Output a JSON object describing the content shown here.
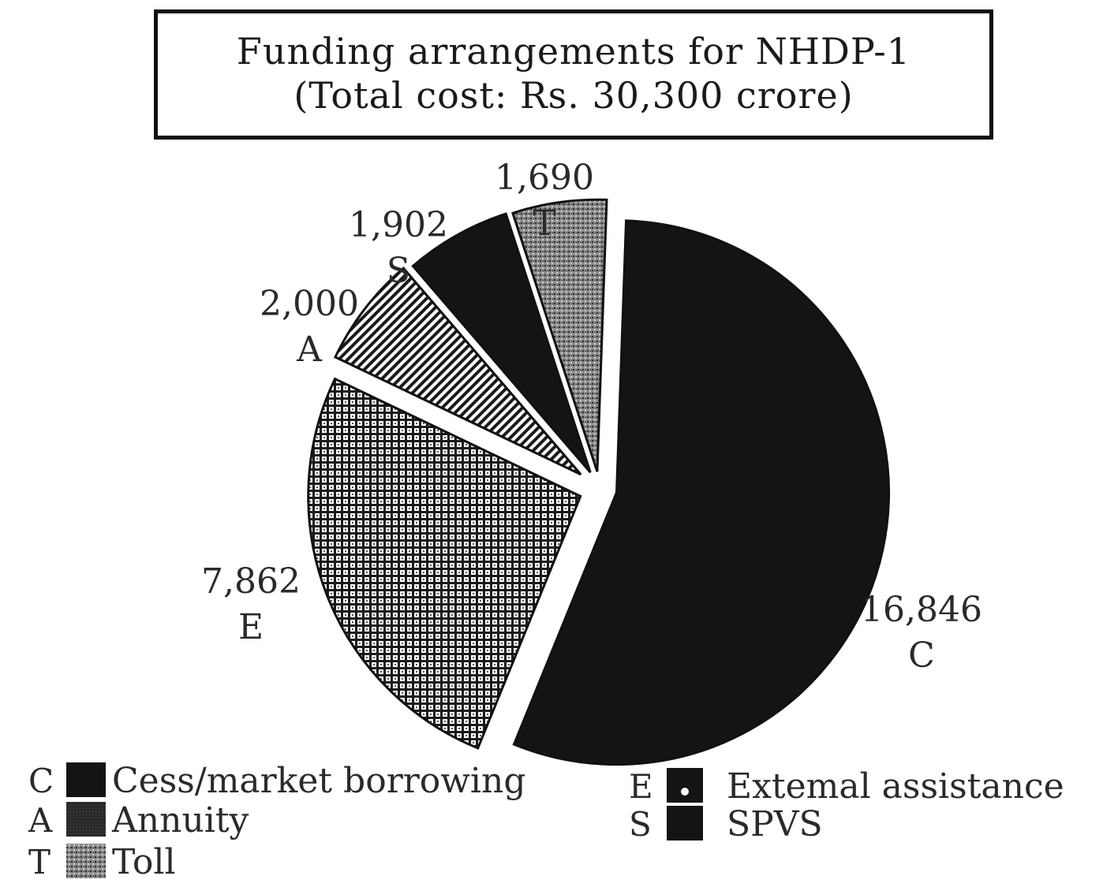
{
  "title": {
    "line1": "Funding arrangements for NHDP-1",
    "line2": "(Total cost: Rs. 30,300 crore)"
  },
  "chart_data": {
    "type": "pie",
    "title": "Funding arrangements for NHDP-1",
    "subtitle": "(Total cost: Rs. 30,300 crore)",
    "slices": [
      {
        "key": "C",
        "label": "Cess/market borrowing",
        "value": 16846,
        "display": "16,846",
        "pattern": "solid-black"
      },
      {
        "key": "E",
        "label": "Extemal assistance",
        "value": 7862,
        "display": "7,862",
        "pattern": "grid"
      },
      {
        "key": "A",
        "label": "Annuity",
        "value": 2000,
        "display": "2,000",
        "pattern": "diagonal-hatch"
      },
      {
        "key": "S",
        "label": "SPVS",
        "value": 1902,
        "display": "1,902",
        "pattern": "solid-black"
      },
      {
        "key": "T",
        "label": "Toll",
        "value": 1690,
        "display": "1,690",
        "pattern": "stipple-gray"
      }
    ],
    "legend": [
      {
        "key": "C",
        "label": "Cess/market borrowing"
      },
      {
        "key": "A",
        "label": "Annuity"
      },
      {
        "key": "T",
        "label": "Toll"
      },
      {
        "key": "E",
        "label": "Extemal assistance"
      },
      {
        "key": "S",
        "label": "SPVS"
      }
    ],
    "legend_position": "bottom",
    "exploded": true
  },
  "colors": {
    "ink": "#111111",
    "text": "#2a2a2a",
    "background": "#ffffff"
  }
}
